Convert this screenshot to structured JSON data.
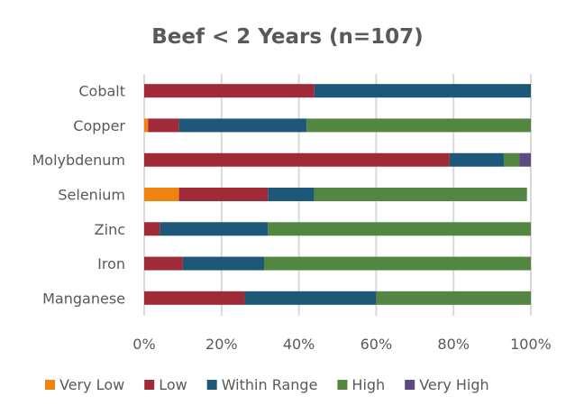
{
  "chart_data": {
    "type": "bar",
    "orientation": "horizontal",
    "stacked": "percent",
    "title": "Beef <  2 Years (n=107)",
    "xlabel": "",
    "ylabel": "",
    "xlim": [
      0,
      100
    ],
    "x_ticks": [
      0,
      20,
      40,
      60,
      80,
      100
    ],
    "x_tick_labels": [
      "0%",
      "20%",
      "40%",
      "60%",
      "80%",
      "100%"
    ],
    "grid": true,
    "legend_position": "bottom",
    "categories": [
      "Cobalt",
      "Copper",
      "Molybdenum",
      "Selenium",
      "Zinc",
      "Iron",
      "Manganese"
    ],
    "series": [
      {
        "name": "Very Low",
        "color": "#F0820F",
        "values": [
          0,
          1,
          0,
          9,
          0,
          0,
          0
        ]
      },
      {
        "name": "Low",
        "color": "#A12A38",
        "values": [
          44,
          8,
          79,
          23,
          4,
          10,
          26
        ]
      },
      {
        "name": "Within Range",
        "color": "#1E5878",
        "values": [
          56,
          33,
          14,
          12,
          28,
          21,
          34
        ]
      },
      {
        "name": "High",
        "color": "#528641",
        "values": [
          0,
          58,
          4,
          55,
          68,
          69,
          40
        ]
      },
      {
        "name": "Very High",
        "color": "#5E4A7E",
        "values": [
          0,
          0,
          3,
          0,
          0,
          0,
          0
        ]
      }
    ]
  }
}
